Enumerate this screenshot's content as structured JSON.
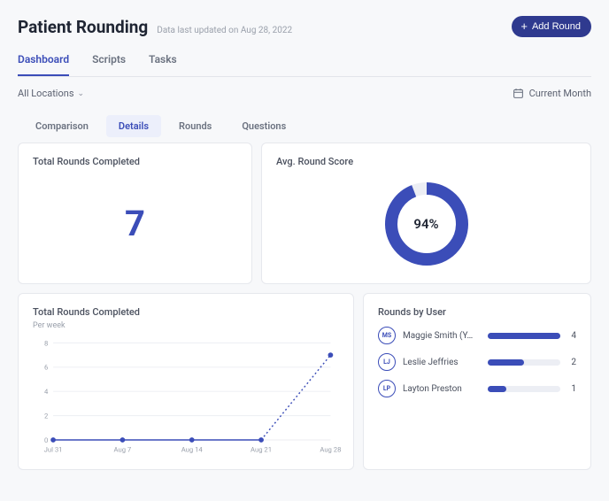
{
  "header": {
    "title": "Patient Rounding",
    "subtitle": "Data last updated on Aug 28, 2022",
    "add_button": "Add Round"
  },
  "main_tabs": {
    "items": [
      "Dashboard",
      "Scripts",
      "Tasks"
    ],
    "active_index": 0
  },
  "filters": {
    "locations_label": "All Locations",
    "current_month_label": "Current Month"
  },
  "sub_tabs": {
    "items": [
      "Comparison",
      "Details",
      "Rounds",
      "Questions"
    ],
    "active_index": 1
  },
  "cards": {
    "total_rounds": {
      "title": "Total Rounds Completed",
      "value": "7",
      "value_color": "#3b4db8",
      "value_fontsize": 40
    },
    "avg_score": {
      "title": "Avg. Round Score",
      "percent": 94,
      "label": "94%",
      "ring_color": "#3b4db8",
      "track_color": "#eceef4",
      "ring_width": 14,
      "size": 104
    }
  },
  "line_chart": {
    "title": "Total Rounds Completed",
    "subtitle": "Per week",
    "type": "line",
    "x_labels": [
      "Jul 31",
      "Aug 7",
      "Aug 14",
      "Aug 21",
      "Aug 28"
    ],
    "values": [
      0,
      0,
      0,
      0,
      7
    ],
    "ylim": [
      0,
      8
    ],
    "ytick_step": 2,
    "yticks": [
      0,
      2,
      4,
      6,
      8
    ],
    "line_color": "#3b4db8",
    "dotted_last_segment": true,
    "marker_radius": 3,
    "grid_color": "#eceef2",
    "axis_label_color": "#9aa0ab",
    "axis_fontsize": 8,
    "background_color": "#ffffff"
  },
  "rounds_by_user": {
    "title": "Rounds by User",
    "max": 4,
    "bar_color": "#3b4db8",
    "track_color": "#eceef4",
    "users": [
      {
        "initials": "MS",
        "name": "Maggie Smith (Y…",
        "count": 4
      },
      {
        "initials": "LJ",
        "name": "Leslie Jeffries",
        "count": 2
      },
      {
        "initials": "LP",
        "name": "Layton Preston",
        "count": 1
      }
    ]
  }
}
